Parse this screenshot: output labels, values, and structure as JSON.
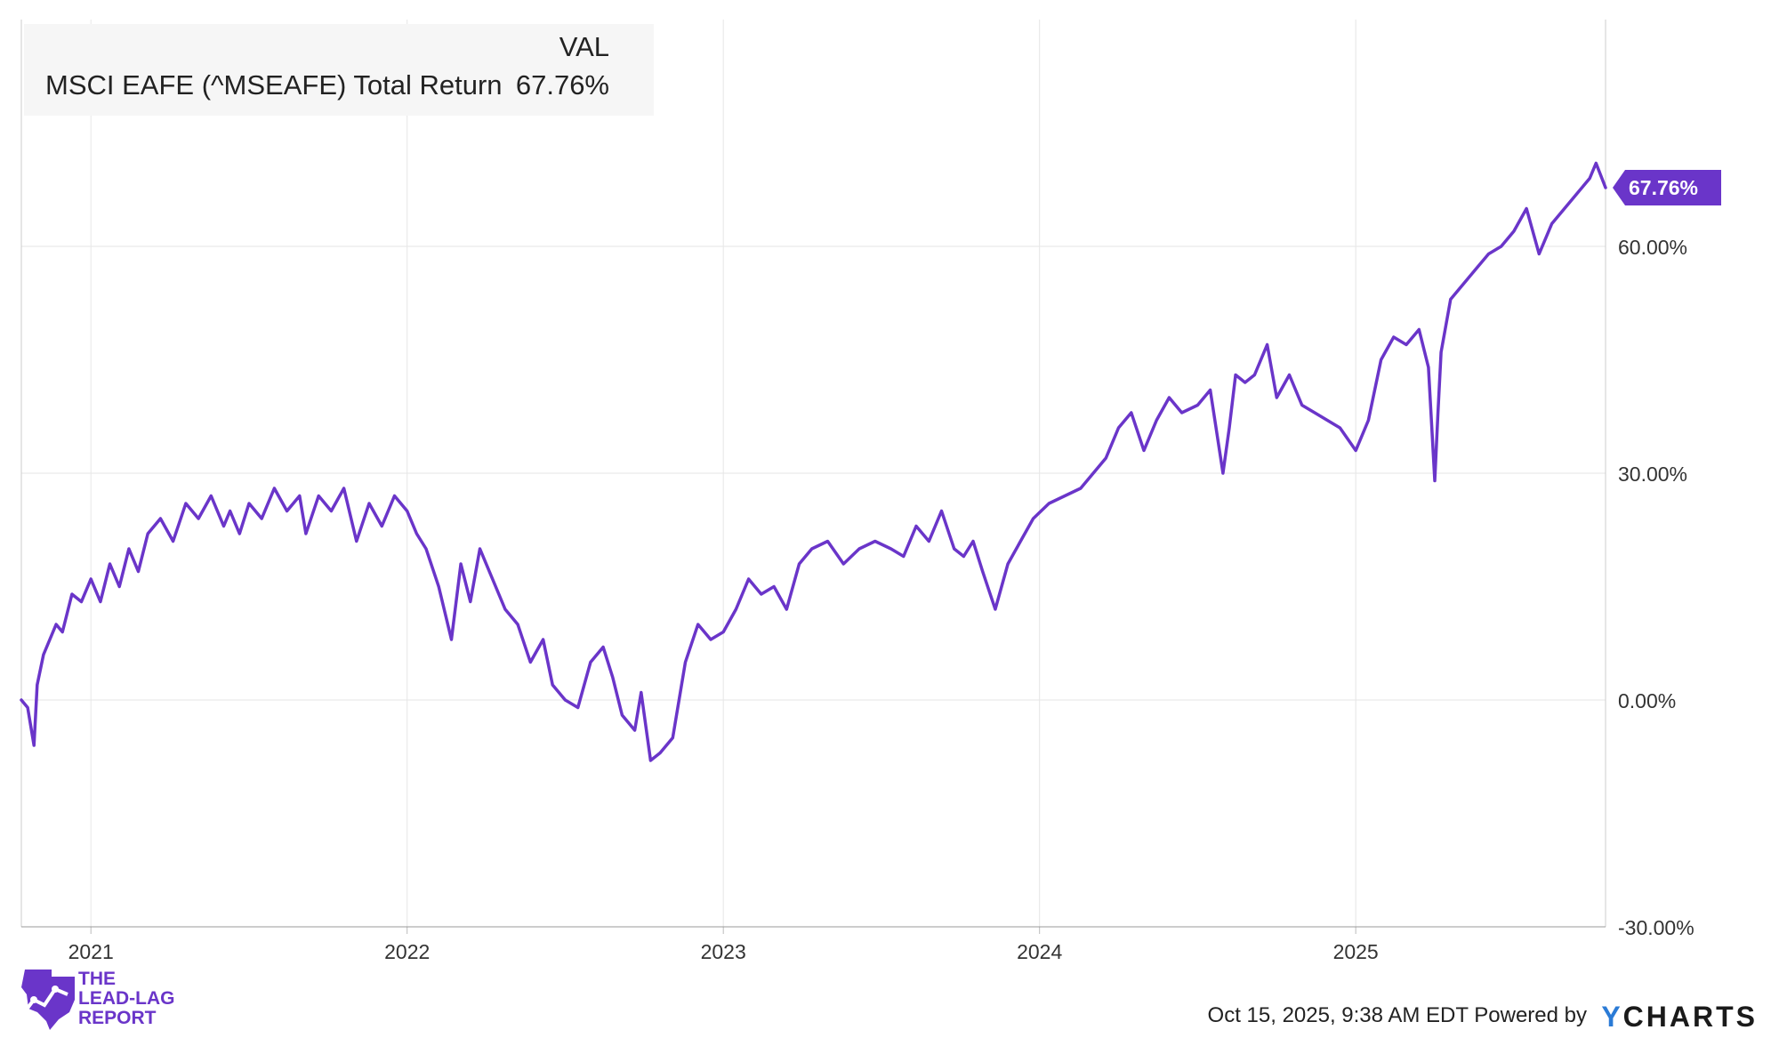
{
  "legend": {
    "header": "VAL",
    "series_name": "MSCI EAFE (^MSEAFE) Total Return",
    "series_value": "67.76%"
  },
  "end_badge": "67.76%",
  "footer": {
    "timestamp": "Oct 15, 2025, 9:38 AM EDT Powered by",
    "brand_y": "Y",
    "brand_rest": "CHARTS"
  },
  "logo": {
    "line1": "THE",
    "line2": "LEAD-LAG",
    "line3": "REPORT"
  },
  "colors": {
    "series": "#6a35c9",
    "grid": "#e6e6e6",
    "axis_text": "#333333"
  },
  "chart_data": {
    "type": "line",
    "x_unit": "year",
    "xlim": [
      2020.78,
      2025.79
    ],
    "ylim": [
      -30,
      90
    ],
    "y_ticks": [
      -30,
      0,
      30,
      60
    ],
    "y_tick_labels": [
      "-30.00%",
      "0.00%",
      "30.00%",
      "60.00%"
    ],
    "x_ticks": [
      2021,
      2022,
      2023,
      2024,
      2025
    ],
    "x_tick_labels": [
      "2021",
      "2022",
      "2023",
      "2024",
      "2025"
    ],
    "grid": true,
    "series": [
      {
        "name": "MSCI EAFE (^MSEAFE) Total Return",
        "x": [
          2020.78,
          2020.8,
          2020.82,
          2020.83,
          2020.85,
          2020.87,
          2020.89,
          2020.91,
          2020.94,
          2020.97,
          2021.0,
          2021.03,
          2021.06,
          2021.09,
          2021.12,
          2021.15,
          2021.18,
          2021.22,
          2021.26,
          2021.3,
          2021.34,
          2021.38,
          2021.42,
          2021.44,
          2021.47,
          2021.5,
          2021.54,
          2021.58,
          2021.62,
          2021.66,
          2021.68,
          2021.72,
          2021.76,
          2021.8,
          2021.84,
          2021.88,
          2021.92,
          2021.96,
          2022.0,
          2022.03,
          2022.06,
          2022.1,
          2022.14,
          2022.17,
          2022.2,
          2022.23,
          2022.27,
          2022.31,
          2022.35,
          2022.39,
          2022.43,
          2022.46,
          2022.5,
          2022.54,
          2022.58,
          2022.62,
          2022.65,
          2022.68,
          2022.72,
          2022.74,
          2022.77,
          2022.8,
          2022.84,
          2022.88,
          2022.92,
          2022.96,
          2023.0,
          2023.04,
          2023.08,
          2023.12,
          2023.16,
          2023.2,
          2023.24,
          2023.28,
          2023.33,
          2023.38,
          2023.43,
          2023.48,
          2023.53,
          2023.57,
          2023.61,
          2023.65,
          2023.69,
          2023.73,
          2023.76,
          2023.79,
          2023.82,
          2023.86,
          2023.9,
          2023.94,
          2023.98,
          2024.03,
          2024.08,
          2024.13,
          2024.17,
          2024.21,
          2024.25,
          2024.29,
          2024.33,
          2024.37,
          2024.41,
          2024.45,
          2024.5,
          2024.54,
          2024.58,
          2024.6,
          2024.62,
          2024.65,
          2024.68,
          2024.72,
          2024.75,
          2024.79,
          2024.83,
          2024.87,
          2024.91,
          2024.95,
          2025.0,
          2025.04,
          2025.08,
          2025.12,
          2025.16,
          2025.2,
          2025.23,
          2025.25,
          2025.26,
          2025.27,
          2025.3,
          2025.34,
          2025.38,
          2025.42,
          2025.46,
          2025.5,
          2025.54,
          2025.58,
          2025.62,
          2025.66,
          2025.7,
          2025.74,
          2025.76,
          2025.79
        ],
        "y": [
          0,
          -1,
          -6,
          2,
          6,
          8,
          10,
          9,
          14,
          13,
          16,
          13,
          18,
          15,
          20,
          17,
          22,
          24,
          21,
          26,
          24,
          27,
          23,
          25,
          22,
          26,
          24,
          28,
          25,
          27,
          22,
          27,
          25,
          28,
          21,
          26,
          23,
          27,
          25,
          22,
          20,
          15,
          8,
          18,
          13,
          20,
          16,
          12,
          10,
          5,
          8,
          2,
          0,
          -1,
          5,
          7,
          3,
          -2,
          -4,
          1,
          -8,
          -7,
          -5,
          5,
          10,
          8,
          9,
          12,
          16,
          14,
          15,
          12,
          18,
          20,
          21,
          18,
          20,
          21,
          20,
          19,
          23,
          21,
          25,
          20,
          19,
          21,
          17,
          12,
          18,
          21,
          24,
          26,
          27,
          28,
          30,
          32,
          36,
          38,
          33,
          37,
          40,
          38,
          39,
          41,
          30,
          36,
          43,
          42,
          43,
          47,
          40,
          43,
          39,
          38,
          37,
          36,
          33,
          37,
          45,
          48,
          47,
          49,
          44,
          29,
          38,
          46,
          53,
          55,
          57,
          59,
          60,
          62,
          65,
          59,
          63,
          65,
          67,
          69,
          71,
          67.76
        ]
      }
    ]
  }
}
